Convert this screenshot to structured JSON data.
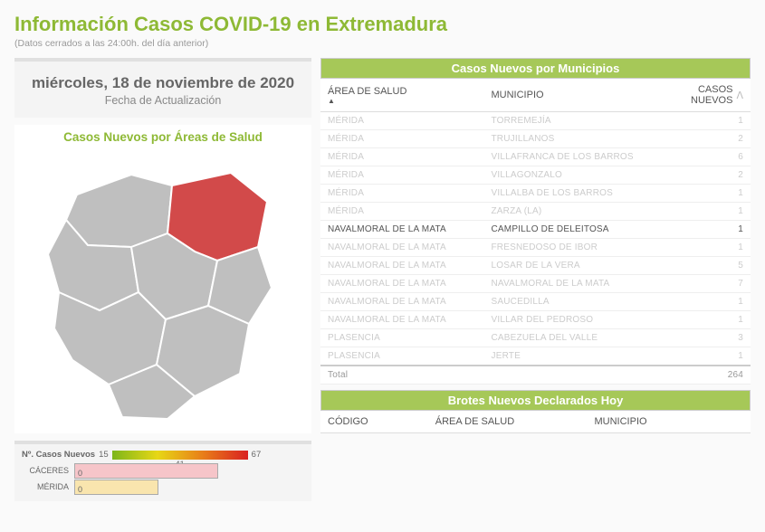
{
  "header": {
    "title": "Información Casos COVID-19 en Extremadura",
    "subtitle": "(Datos cerrados a las 24:00h. del día anterior)"
  },
  "date_panel": {
    "date": "miércoles, 18 de noviembre de 2020",
    "label": "Fecha de Actualización"
  },
  "map_panel": {
    "title": "Casos Nuevos por Áreas de Salud"
  },
  "map": {
    "highlight_fill": "#d24a4a",
    "normal_fill": "#bfbfbf",
    "stroke": "#ffffff"
  },
  "legend": {
    "label": "Nº. Casos Nuevos",
    "min": "15",
    "mid": "41",
    "max": "67",
    "bars": [
      {
        "label": "CÁCERES",
        "value": "0",
        "fill": "#f6c5c9",
        "width_pct": 62
      },
      {
        "label": "MÉRIDA",
        "value": "0",
        "fill": "#f9e5ae",
        "width_pct": 36
      }
    ]
  },
  "table1": {
    "title": "Casos Nuevos por Municipios",
    "columns": [
      "ÁREA DE SALUD",
      "MUNICIPIO",
      "CASOS NUEVOS"
    ],
    "rows": [
      {
        "a": "MÉRIDA",
        "m": "TORREMEJÍA",
        "c": "1"
      },
      {
        "a": "MÉRIDA",
        "m": "TRUJILLANOS",
        "c": "2"
      },
      {
        "a": "MÉRIDA",
        "m": "VILLAFRANCA DE LOS BARROS",
        "c": "6"
      },
      {
        "a": "MÉRIDA",
        "m": "VILLAGONZALO",
        "c": "2"
      },
      {
        "a": "MÉRIDA",
        "m": "VILLALBA DE LOS BARROS",
        "c": "1"
      },
      {
        "a": "MÉRIDA",
        "m": "ZARZA (LA)",
        "c": "1"
      },
      {
        "a": "NAVALMORAL DE LA MATA",
        "m": "CAMPILLO DE DELEITOSA",
        "c": "1",
        "hl": true
      },
      {
        "a": "NAVALMORAL DE LA MATA",
        "m": "FRESNEDOSO DE IBOR",
        "c": "1"
      },
      {
        "a": "NAVALMORAL DE LA MATA",
        "m": "LOSAR DE LA VERA",
        "c": "5"
      },
      {
        "a": "NAVALMORAL DE LA MATA",
        "m": "NAVALMORAL DE LA MATA",
        "c": "7"
      },
      {
        "a": "NAVALMORAL DE LA MATA",
        "m": "SAUCEDILLA",
        "c": "1"
      },
      {
        "a": "NAVALMORAL DE LA MATA",
        "m": "VILLAR DEL PEDROSO",
        "c": "1"
      },
      {
        "a": "PLASENCIA",
        "m": "CABEZUELA DEL VALLE",
        "c": "3"
      },
      {
        "a": "PLASENCIA",
        "m": "JERTE",
        "c": "1"
      }
    ],
    "total_label": "Total",
    "total_value": "264"
  },
  "table2": {
    "title": "Brotes Nuevos Declarados Hoy",
    "columns": [
      "CÓDIGO",
      "ÁREA DE SALUD",
      "MUNICIPIO"
    ]
  },
  "scroll_arrow": "ꓥ"
}
